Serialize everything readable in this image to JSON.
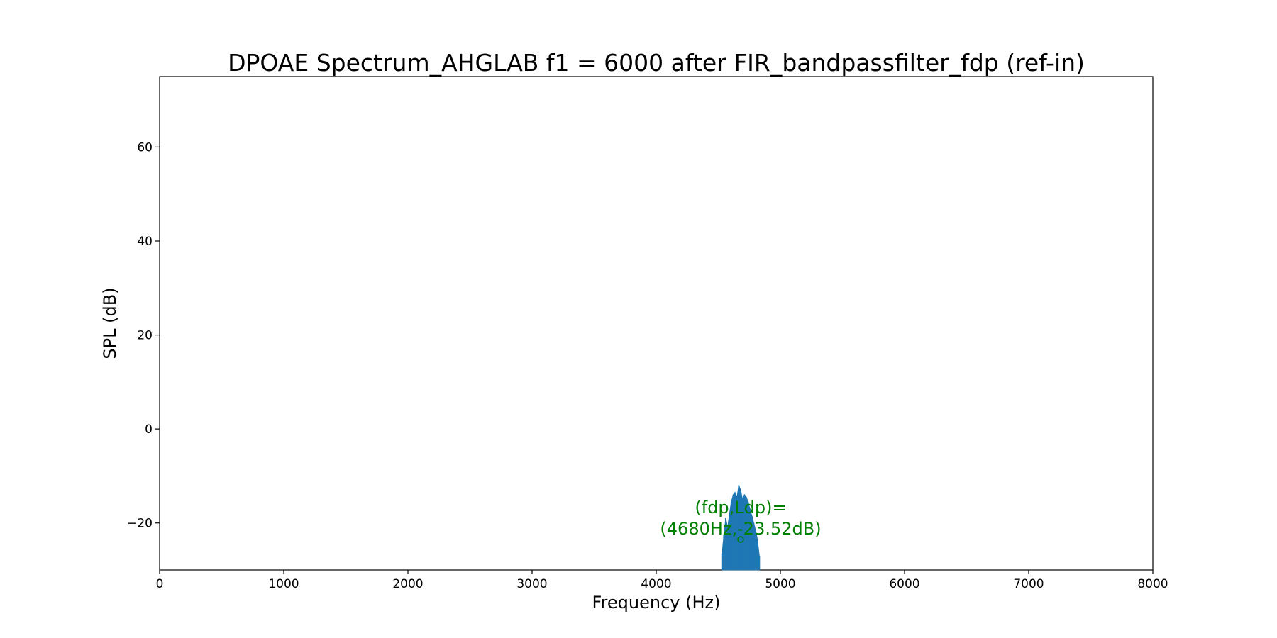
{
  "chart_data": {
    "type": "line",
    "title": "DPOAE Spectrum_AHGLAB f1 = 6000 after FIR_bandpassfilter_fdp (ref-in)",
    "xlabel": "Frequency (Hz)",
    "ylabel": "SPL (dB)",
    "xlim": [
      0,
      8000
    ],
    "ylim": [
      -30,
      75
    ],
    "xticks": [
      0,
      1000,
      2000,
      3000,
      4000,
      5000,
      6000,
      7000,
      8000
    ],
    "xtick_labels": [
      "0",
      "1000",
      "2000",
      "3000",
      "4000",
      "5000",
      "6000",
      "7000",
      "8000"
    ],
    "yticks": [
      -20,
      0,
      20,
      40,
      60
    ],
    "ytick_labels": [
      "−20",
      "0",
      "20",
      "40",
      "60"
    ],
    "grid": false,
    "series": [
      {
        "color": "#1f77b4",
        "x": [
          4530,
          4545,
          4560,
          4575,
          4590,
          4605,
          4620,
          4635,
          4650,
          4665,
          4680,
          4695,
          4710,
          4725,
          4740,
          4755,
          4770,
          4785,
          4800,
          4815,
          4830
        ],
        "y": [
          -26.5,
          -22.5,
          -19,
          -21,
          -18,
          -15.5,
          -14,
          -13.5,
          -14.5,
          -12,
          -13,
          -15,
          -14,
          -14.5,
          -15.5,
          -17,
          -18.5,
          -20,
          -21.5,
          -23.5,
          -27
        ]
      }
    ],
    "marker": {
      "x": 4680,
      "y": -23.52,
      "color": "#008000",
      "style": "open-circle"
    },
    "annotation": {
      "line1": "(fdp,Ldp)=",
      "line2": "(4680Hz,-23.52dB)",
      "color": "#008000"
    }
  }
}
